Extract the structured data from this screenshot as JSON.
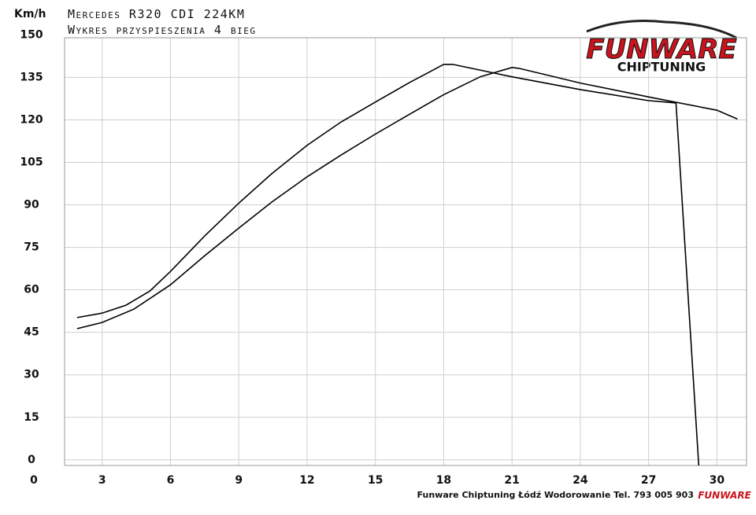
{
  "chart_data": {
    "type": "line",
    "title": "Mercedes R320 CDI 224KM",
    "subtitle": "Wykres przyspieszenia 4 bieg",
    "y_label": "Km/h",
    "footer": "Funware Chiptuning Łódź Wodorowanie Tel. 793 005 903",
    "logo": {
      "brand": "FUNWARE",
      "tagline": "CHIPTUNING"
    },
    "xlim": [
      1.35,
      31.3
    ],
    "ylim": [
      -2,
      149
    ],
    "xticks": [
      0,
      3,
      6,
      9,
      12,
      15,
      18,
      21,
      24,
      27,
      30
    ],
    "yticks": [
      0,
      15,
      30,
      45,
      60,
      75,
      90,
      105,
      120,
      135,
      150
    ],
    "grid": true,
    "series": [
      {
        "color": "#000000",
        "x": [
          1.9,
          3,
          4.05,
          5.1,
          6,
          7.5,
          9,
          10.45,
          12,
          13.5,
          15,
          16.5,
          18,
          18.4,
          21,
          24,
          27,
          28.2,
          29.2
        ],
        "values": [
          50.2,
          51.8,
          54.6,
          59.6,
          66.5,
          79,
          90.6,
          101,
          111,
          119.3,
          126.3,
          133.2,
          139.6,
          139.6,
          135.2,
          130.7,
          126.8,
          126,
          -2
        ]
      },
      {
        "color": "#000000",
        "x": [
          1.9,
          3,
          4.4,
          6,
          7.5,
          9,
          10.45,
          12,
          13.5,
          15,
          16.5,
          18,
          19.6,
          21,
          21.3,
          24,
          27,
          30,
          30.9
        ],
        "values": [
          46.3,
          48.5,
          53.2,
          61.8,
          72,
          81.8,
          91,
          99.9,
          107.6,
          115,
          122,
          128.9,
          135.2,
          138.5,
          138.2,
          133,
          128.1,
          123.4,
          120.3
        ]
      }
    ]
  }
}
